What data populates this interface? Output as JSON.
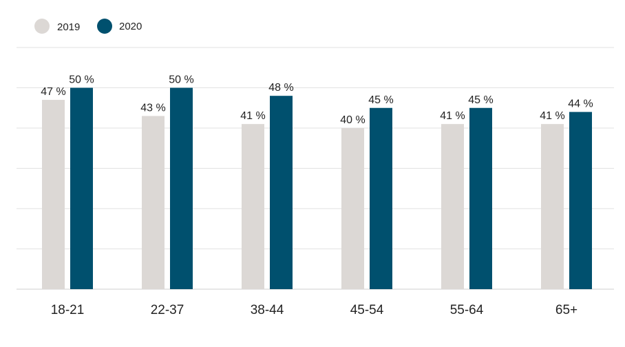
{
  "chart_data": {
    "type": "bar",
    "categories": [
      "18-21",
      "22-37",
      "38-44",
      "45-54",
      "55-64",
      "65+"
    ],
    "series": [
      {
        "name": "2019",
        "values": [
          47,
          43,
          41,
          40,
          41,
          41
        ],
        "color": "#dcd8d5"
      },
      {
        "name": "2020",
        "values": [
          50,
          50,
          48,
          45,
          45,
          44
        ],
        "color": "#00506e"
      }
    ],
    "value_suffix": " %",
    "title": "",
    "xlabel": "",
    "ylabel": "",
    "ylim": [
      0,
      60
    ],
    "grid": true,
    "legend": "top-left"
  }
}
